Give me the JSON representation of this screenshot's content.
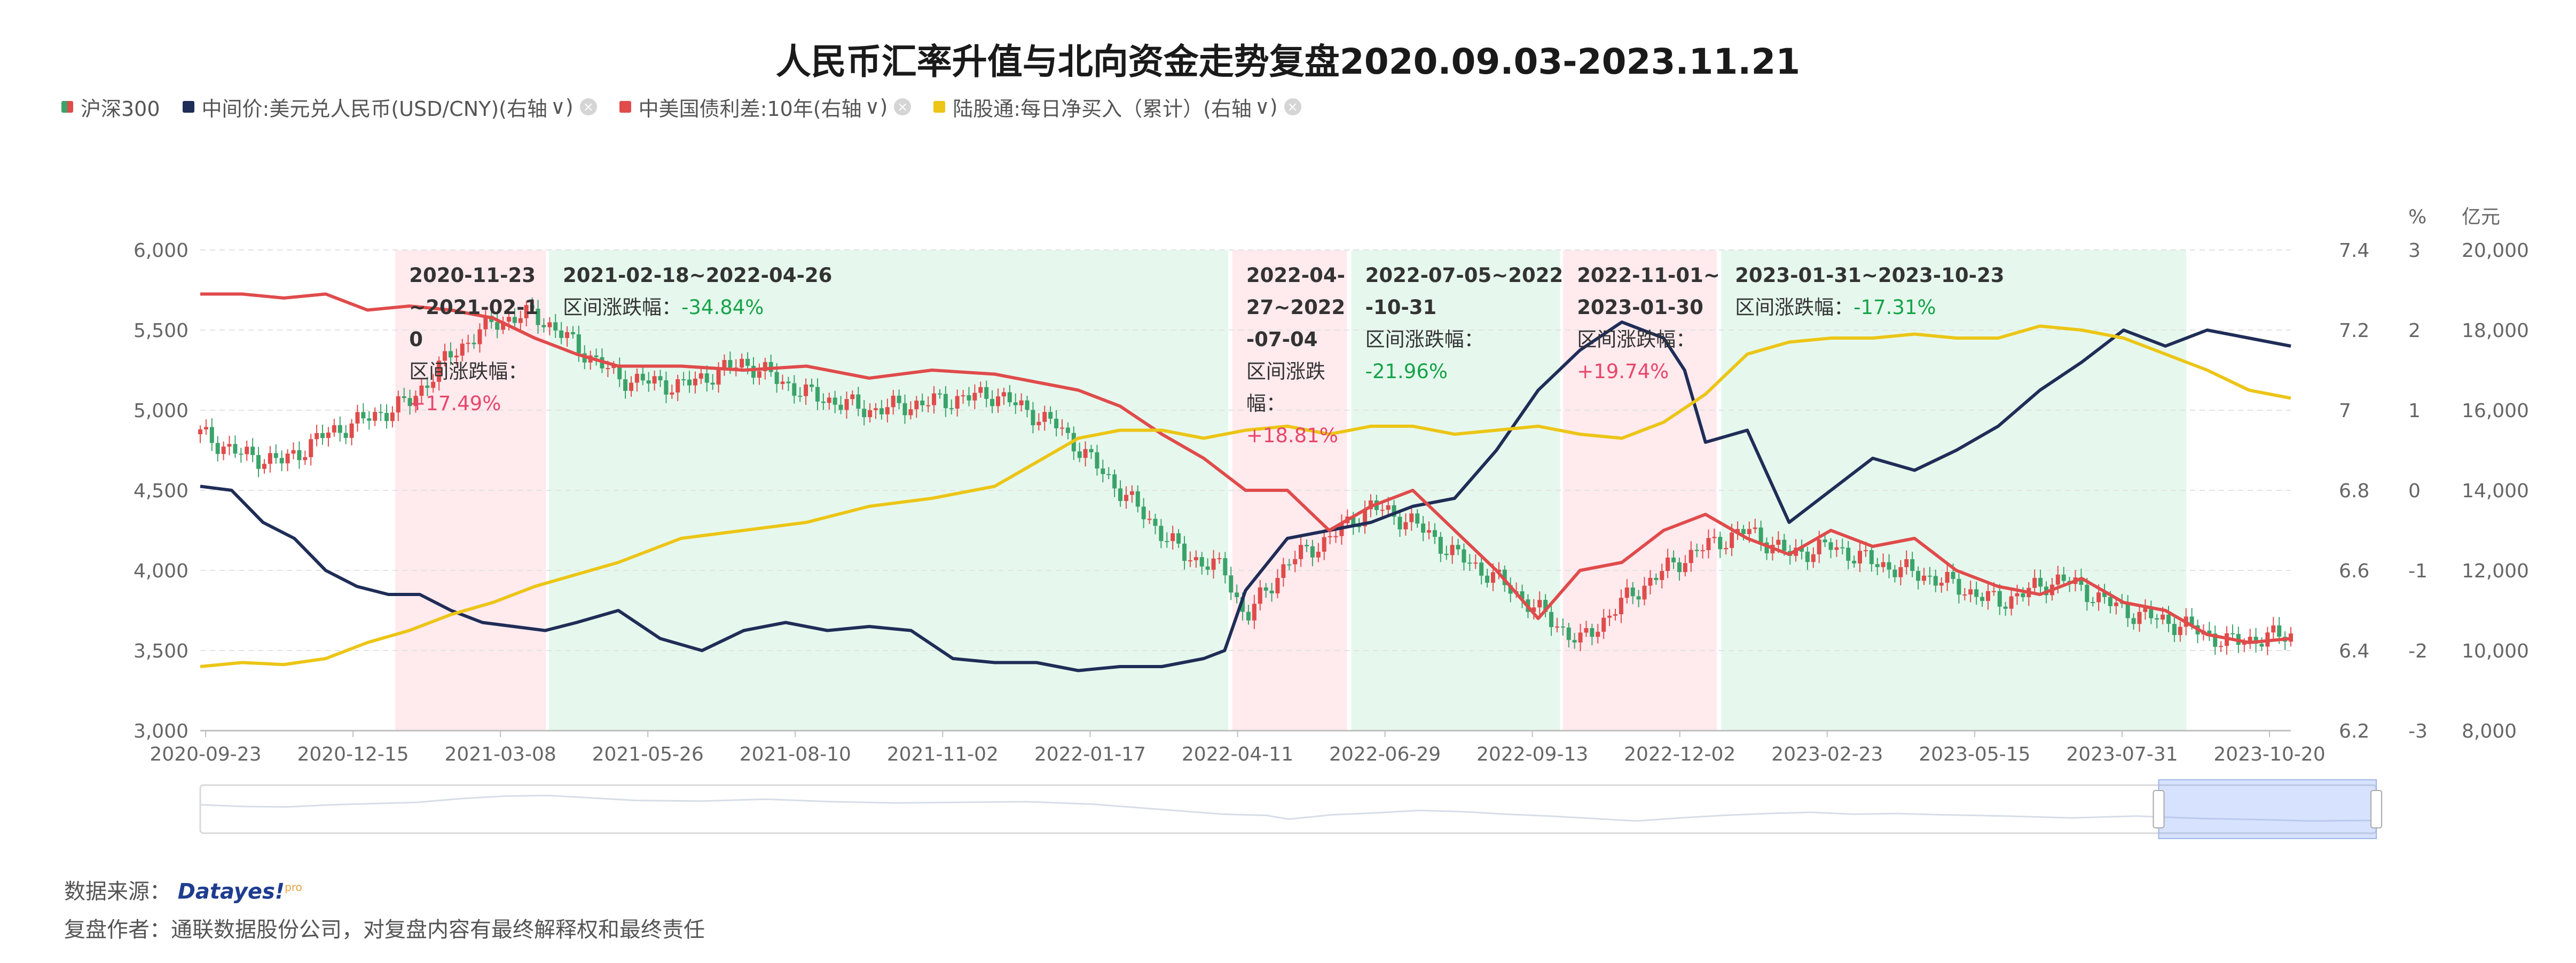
{
  "title": "人民币汇率升值与北向资金走势复盘2020.09.03-2023.11.21",
  "legend": [
    {
      "label": "沪深300",
      "color": "#3aa36a",
      "color2": "#e04b4b",
      "removable": false
    },
    {
      "label": "中间价:美元兑人民币(USD/CNY)(右轴",
      "color": "#1f2d57",
      "removable": true
    },
    {
      "label": "中美国债利差:10年(右轴",
      "color": "#e04b4b",
      "removable": true
    },
    {
      "label": "陆股通:每日净买入（累计）(右轴",
      "color": "#ecc516",
      "removable": true
    }
  ],
  "footer": {
    "source_label": "数据来源：",
    "source_brand": "Datayes!",
    "source_brand_sup": "pro",
    "author_label": "复盘作者：通联数据股份公司，对复盘内容有最终解释权和最终责任"
  },
  "chart_data": {
    "type": "line",
    "x_ticks": [
      "2020-09-23",
      "2020-12-15",
      "2021-03-08",
      "2021-05-26",
      "2021-08-10",
      "2021-11-02",
      "2022-01-17",
      "2022-04-11",
      "2022-06-29",
      "2022-09-13",
      "2022-12-02",
      "2023-02-23",
      "2023-05-15",
      "2023-07-31",
      "2023-10-20"
    ],
    "axes": {
      "left": {
        "ticks": [
          "6,000",
          "5,500",
          "5,000",
          "4,500",
          "4,000",
          "3,500",
          "3,000"
        ],
        "range": [
          3000,
          6000
        ]
      },
      "right1": {
        "ticks": [
          "7.4",
          "7.2",
          "7",
          "6.8",
          "6.6",
          "6.4",
          "6.2"
        ],
        "range": [
          6.2,
          7.4
        ]
      },
      "right2": {
        "unit": "%",
        "ticks": [
          "3",
          "2",
          "1",
          "0",
          "-1",
          "-2",
          "-3"
        ],
        "range": [
          -3,
          3
        ]
      },
      "right3": {
        "unit": "亿元",
        "ticks": [
          "20,000",
          "18,000",
          "16,000",
          "14,000",
          "12,000",
          "10,000",
          "8,000"
        ],
        "range": [
          8000,
          20000
        ]
      }
    },
    "bands": [
      {
        "type": "rise",
        "start": 0.0933,
        "end": 0.1653
      },
      {
        "type": "fall",
        "start": 0.1668,
        "end": 0.4917
      },
      {
        "type": "rise",
        "start": 0.4937,
        "end": 0.5485
      },
      {
        "type": "fall",
        "start": 0.5506,
        "end": 0.6504
      },
      {
        "type": "rise",
        "start": 0.6519,
        "end": 0.7254
      },
      {
        "type": "fall",
        "start": 0.7275,
        "end": 0.95
      }
    ],
    "annotations": [
      {
        "lines": [
          "2020-11-23",
          "~2021-02-1",
          "0",
          "区间涨跌幅："
        ],
        "value": "+17.49%",
        "value_inline": false,
        "color": "#e8476a"
      },
      {
        "lines": [
          "2021-02-18~2022-04-26"
        ],
        "value_prefix": "区间涨跌幅：",
        "value": "-34.84%",
        "value_inline": true,
        "color": "#16a34a"
      },
      {
        "lines": [
          "2022-04-",
          "27~2022",
          "-07-04",
          "区间涨跌",
          "幅："
        ],
        "value": "+18.81%",
        "value_inline": false,
        "color": "#e8476a"
      },
      {
        "lines": [
          "2022-07-05~2022",
          "-10-31",
          "区间涨跌幅："
        ],
        "value": "-21.96%",
        "value_inline": false,
        "color": "#16a34a"
      },
      {
        "lines": [
          "2022-11-01~",
          "2023-01-30",
          "区间涨跌幅："
        ],
        "value": "+19.74%",
        "value_inline": false,
        "color": "#e8476a"
      },
      {
        "lines": [
          "2023-01-31~2023-10-23"
        ],
        "value_prefix": "区间涨跌幅：",
        "value": "-17.31%",
        "value_inline": true,
        "color": "#16a34a"
      }
    ],
    "series": [
      {
        "key": "csi300",
        "axis": "left",
        "style": "candlestick",
        "x": [
          0,
          0.02,
          0.04,
          0.06,
          0.08,
          0.1,
          0.12,
          0.14,
          0.16,
          0.18,
          0.2,
          0.23,
          0.26,
          0.29,
          0.32,
          0.35,
          0.38,
          0.41,
          0.44,
          0.47,
          0.49,
          0.5,
          0.52,
          0.54,
          0.56,
          0.58,
          0.6,
          0.62,
          0.64,
          0.66,
          0.68,
          0.7,
          0.72,
          0.74,
          0.76,
          0.78,
          0.8,
          0.83,
          0.86,
          0.89,
          0.92,
          0.95,
          0.97,
          1.0
        ],
        "y": [
          4850,
          4720,
          4680,
          4850,
          4950,
          5050,
          5350,
          5550,
          5600,
          5400,
          5200,
          5150,
          5300,
          5100,
          5000,
          5050,
          5100,
          4900,
          4500,
          4100,
          4000,
          3700,
          4050,
          4200,
          4400,
          4300,
          4100,
          3950,
          3750,
          3550,
          3800,
          4000,
          4150,
          4250,
          4100,
          4150,
          4050,
          3950,
          3800,
          3950,
          3750,
          3650,
          3550,
          3600
        ]
      },
      {
        "key": "usdcny",
        "axis": "right1",
        "color": "#1f2d57",
        "x": [
          0,
          0.015,
          0.03,
          0.045,
          0.06,
          0.075,
          0.09,
          0.105,
          0.12,
          0.135,
          0.15,
          0.165,
          0.18,
          0.2,
          0.22,
          0.24,
          0.26,
          0.28,
          0.3,
          0.32,
          0.34,
          0.36,
          0.38,
          0.4,
          0.42,
          0.44,
          0.46,
          0.48,
          0.49,
          0.5,
          0.52,
          0.54,
          0.56,
          0.58,
          0.6,
          0.62,
          0.64,
          0.66,
          0.68,
          0.7,
          0.71,
          0.72,
          0.74,
          0.76,
          0.78,
          0.8,
          0.82,
          0.84,
          0.86,
          0.88,
          0.9,
          0.92,
          0.94,
          0.96,
          0.98,
          1.0
        ],
        "y": [
          6.81,
          6.8,
          6.72,
          6.68,
          6.6,
          6.56,
          6.54,
          6.54,
          6.5,
          6.47,
          6.46,
          6.45,
          6.47,
          6.5,
          6.43,
          6.4,
          6.45,
          6.47,
          6.45,
          6.46,
          6.45,
          6.38,
          6.37,
          6.37,
          6.35,
          6.36,
          6.36,
          6.38,
          6.4,
          6.55,
          6.68,
          6.7,
          6.72,
          6.76,
          6.78,
          6.9,
          7.05,
          7.15,
          7.22,
          7.18,
          7.1,
          6.92,
          6.95,
          6.72,
          6.8,
          6.88,
          6.85,
          6.9,
          6.96,
          7.05,
          7.12,
          7.2,
          7.16,
          7.2,
          7.18,
          7.16
        ]
      },
      {
        "key": "spread",
        "axis": "right2",
        "color": "#e04b4b",
        "x": [
          0,
          0.02,
          0.04,
          0.06,
          0.08,
          0.1,
          0.12,
          0.14,
          0.16,
          0.18,
          0.2,
          0.23,
          0.26,
          0.29,
          0.32,
          0.35,
          0.38,
          0.4,
          0.42,
          0.44,
          0.46,
          0.48,
          0.5,
          0.52,
          0.54,
          0.56,
          0.58,
          0.6,
          0.62,
          0.64,
          0.66,
          0.68,
          0.7,
          0.72,
          0.74,
          0.76,
          0.78,
          0.8,
          0.82,
          0.84,
          0.86,
          0.88,
          0.9,
          0.92,
          0.94,
          0.96,
          0.98,
          1.0
        ],
        "y": [
          2.45,
          2.45,
          2.4,
          2.45,
          2.25,
          2.3,
          2.25,
          2.15,
          1.9,
          1.7,
          1.55,
          1.55,
          1.5,
          1.55,
          1.4,
          1.5,
          1.45,
          1.35,
          1.25,
          1.05,
          0.7,
          0.4,
          0.0,
          0.0,
          -0.5,
          -0.2,
          0.0,
          -0.5,
          -1.0,
          -1.6,
          -1.0,
          -0.9,
          -0.5,
          -0.3,
          -0.6,
          -0.8,
          -0.5,
          -0.7,
          -0.6,
          -1.0,
          -1.2,
          -1.3,
          -1.1,
          -1.4,
          -1.5,
          -1.8,
          -1.9,
          -1.85
        ]
      },
      {
        "key": "northbound",
        "axis": "right3",
        "color": "#ecc516",
        "x": [
          0,
          0.02,
          0.04,
          0.06,
          0.08,
          0.1,
          0.12,
          0.14,
          0.16,
          0.18,
          0.2,
          0.23,
          0.26,
          0.29,
          0.32,
          0.35,
          0.38,
          0.4,
          0.42,
          0.44,
          0.46,
          0.48,
          0.5,
          0.52,
          0.54,
          0.56,
          0.58,
          0.6,
          0.62,
          0.64,
          0.66,
          0.68,
          0.7,
          0.72,
          0.74,
          0.76,
          0.78,
          0.8,
          0.82,
          0.84,
          0.86,
          0.88,
          0.9,
          0.92,
          0.94,
          0.96,
          0.98,
          1.0
        ],
        "y": [
          9600,
          9700,
          9650,
          9800,
          10200,
          10500,
          10900,
          11200,
          11600,
          11900,
          12200,
          12800,
          13000,
          13200,
          13600,
          13800,
          14100,
          14700,
          15300,
          15500,
          15500,
          15300,
          15500,
          15600,
          15400,
          15600,
          15600,
          15400,
          15500,
          15600,
          15400,
          15300,
          15700,
          16400,
          17400,
          17700,
          17800,
          17800,
          17900,
          17800,
          17800,
          18100,
          18000,
          17800,
          17400,
          17000,
          16500,
          16300
        ]
      }
    ]
  }
}
